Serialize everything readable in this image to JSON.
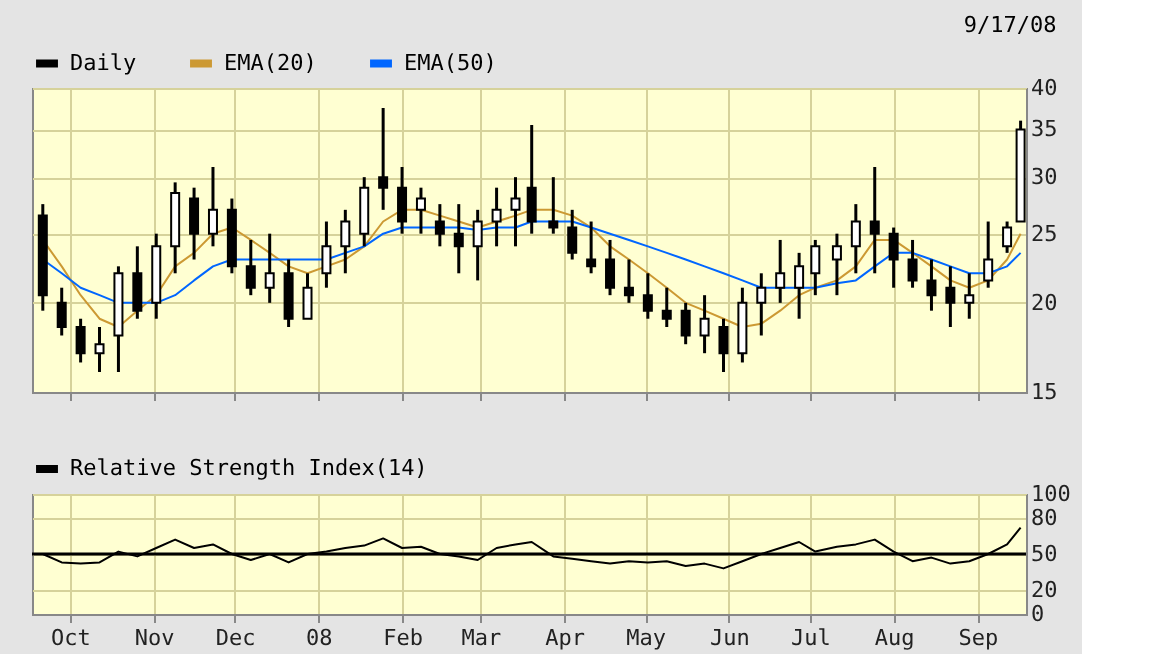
{
  "chart_data": [
    {
      "type": "candlestick",
      "annotations": [
        "9/17/08"
      ],
      "log": "y",
      "grid": true,
      "legend": "top left",
      "tick_labels": "y",
      "xlim": [
        "2007-09-17",
        "2008-09-19"
      ],
      "xticks": [
        {
          "value": "2007-10-01",
          "label": null
        },
        {
          "value": "2007-11-01",
          "label": null
        },
        {
          "value": "2007-12-01",
          "label": null
        },
        {
          "value": "2008-01-01",
          "label": null
        },
        {
          "value": "2008-02-01",
          "label": null
        },
        {
          "value": "2008-03-01",
          "label": null
        },
        {
          "value": "2008-04-01",
          "label": null
        },
        {
          "value": "2008-05-01",
          "label": null
        },
        {
          "value": "2008-06-01",
          "label": null
        },
        {
          "value": "2008-07-01",
          "label": null
        },
        {
          "value": "2008-08-01",
          "label": null
        },
        {
          "value": "2008-09-01",
          "label": null
        }
      ],
      "ylim": [
        15,
        40
      ],
      "yticks": [
        15,
        20,
        25,
        30,
        35,
        40
      ],
      "x": [
        "2007-09-21",
        "2007-09-28",
        "2007-10-05",
        "2007-10-12",
        "2007-10-19",
        "2007-10-26",
        "2007-11-02",
        "2007-11-09",
        "2007-11-16",
        "2007-11-23",
        "2007-11-30",
        "2007-12-07",
        "2007-12-14",
        "2007-12-21",
        "2007-12-28",
        "2008-01-04",
        "2008-01-11",
        "2008-01-18",
        "2008-01-25",
        "2008-02-01",
        "2008-02-08",
        "2008-02-15",
        "2008-02-22",
        "2008-02-29",
        "2008-03-07",
        "2008-03-14",
        "2008-03-20",
        "2008-03-28",
        "2008-04-04",
        "2008-04-11",
        "2008-04-18",
        "2008-04-25",
        "2008-05-02",
        "2008-05-09",
        "2008-05-16",
        "2008-05-23",
        "2008-05-30",
        "2008-06-06",
        "2008-06-13",
        "2008-06-20",
        "2008-06-27",
        "2008-07-03",
        "2008-07-11",
        "2008-07-18",
        "2008-07-25",
        "2008-08-01",
        "2008-08-08",
        "2008-08-15",
        "2008-08-22",
        "2008-08-29",
        "2008-09-05",
        "2008-09-12",
        "2008-09-17"
      ],
      "series": [
        {
          "name": "Daily",
          "type": "candlestick",
          "color": "#000000",
          "ohlc": [
            [
              26.5,
              27.5,
              19.5,
              20.5
            ],
            [
              20,
              21,
              18,
              18.5
            ],
            [
              18.5,
              19,
              16.5,
              17
            ],
            [
              17,
              18.5,
              16,
              17.5
            ],
            [
              18,
              22.5,
              16,
              22
            ],
            [
              22,
              24,
              19,
              19.5
            ],
            [
              20,
              25,
              19,
              24
            ],
            [
              24,
              29.5,
              22,
              28.5
            ],
            [
              28,
              29,
              23,
              25
            ],
            [
              25,
              31,
              24,
              27
            ],
            [
              27,
              28,
              22,
              22.5
            ],
            [
              22.5,
              24.5,
              20.5,
              21
            ],
            [
              21,
              25,
              20,
              22
            ],
            [
              22,
              23,
              18.5,
              19
            ],
            [
              19,
              22,
              19,
              21
            ],
            [
              22,
              26,
              21,
              24
            ],
            [
              24,
              27,
              22,
              26
            ],
            [
              25,
              30,
              24,
              29
            ],
            [
              30,
              37.5,
              27,
              29
            ],
            [
              29,
              31,
              25,
              26
            ],
            [
              27,
              29,
              25,
              28
            ],
            [
              26,
              27.5,
              24,
              25
            ],
            [
              25,
              27.5,
              22,
              24
            ],
            [
              24,
              27,
              21.5,
              26
            ],
            [
              26,
              29,
              24,
              27
            ],
            [
              27,
              30,
              24,
              28
            ],
            [
              29,
              35.5,
              25,
              26
            ],
            [
              26,
              30,
              25,
              25.5
            ],
            [
              25.5,
              27,
              23,
              23.5
            ],
            [
              23,
              26,
              22,
              22.5
            ],
            [
              23,
              24.5,
              20.5,
              21
            ],
            [
              21,
              23,
              20,
              20.5
            ],
            [
              20.5,
              22,
              19,
              19.5
            ],
            [
              19.5,
              21,
              18.5,
              19
            ],
            [
              19.5,
              20,
              17.5,
              18
            ],
            [
              18,
              20.5,
              17,
              19
            ],
            [
              18.5,
              19,
              16,
              17
            ],
            [
              17,
              21,
              16.5,
              20
            ],
            [
              20,
              22,
              18,
              21
            ],
            [
              21,
              24.5,
              20,
              22
            ],
            [
              21,
              23.5,
              19,
              22.5
            ],
            [
              22,
              24.5,
              20.5,
              24
            ],
            [
              23,
              25,
              20.5,
              24
            ],
            [
              24,
              27.5,
              22,
              26
            ],
            [
              26,
              31,
              22,
              25
            ],
            [
              25,
              25.5,
              21,
              23
            ],
            [
              23,
              24.5,
              21,
              21.5
            ],
            [
              21.5,
              23,
              19.5,
              20.5
            ],
            [
              21,
              22.5,
              18.5,
              20
            ],
            [
              20,
              22,
              19,
              20.5
            ],
            [
              21.5,
              26,
              21,
              23
            ],
            [
              24,
              26,
              23.5,
              25.5
            ],
            [
              26,
              36,
              26,
              35
            ]
          ]
        },
        {
          "name": "EMA(20)",
          "type": "line",
          "color": "#cc9933",
          "values": [
            24.5,
            22.5,
            20.5,
            19,
            18.5,
            19.5,
            20.5,
            22.5,
            23.5,
            25,
            25.5,
            24.5,
            23.5,
            22.5,
            22,
            22.5,
            23,
            24,
            26,
            27,
            27,
            26.5,
            26,
            25.5,
            26,
            26.5,
            27,
            27,
            26.5,
            25.5,
            24,
            23,
            22,
            21,
            20,
            19.5,
            19,
            18.5,
            18.7,
            19.5,
            20.5,
            21,
            21.5,
            22.5,
            24.5,
            24.5,
            23.5,
            22.5,
            21.5,
            21,
            21.5,
            23,
            25
          ]
        },
        {
          "name": "EMA(50)",
          "type": "line",
          "color": "#0066ff",
          "values": [
            23,
            22,
            21,
            20.5,
            20,
            20,
            20,
            20.5,
            21.5,
            22.5,
            23,
            23,
            23,
            23,
            23,
            23,
            23.5,
            24,
            25,
            25.5,
            25.5,
            25.5,
            25.5,
            25.3,
            25.5,
            25.5,
            26,
            26,
            26,
            25.5,
            25,
            24.5,
            24,
            23.5,
            23,
            22.5,
            22,
            21.5,
            21,
            21,
            21,
            21,
            21.3,
            21.5,
            22.5,
            23.5,
            23.5,
            23,
            22.5,
            22,
            22,
            22.5,
            23.5
          ]
        }
      ]
    },
    {
      "type": "line",
      "grid": true,
      "legend": "top left",
      "xlim": [
        "2007-09-17",
        "2008-09-19"
      ],
      "xticks": [
        {
          "value": "2007-10-01",
          "label": "Oct"
        },
        {
          "value": "2007-11-01",
          "label": "Nov"
        },
        {
          "value": "2007-12-01",
          "label": "Dec"
        },
        {
          "value": "2008-01-01",
          "label": "08"
        },
        {
          "value": "2008-02-01",
          "label": "Feb"
        },
        {
          "value": "2008-03-01",
          "label": "Mar"
        },
        {
          "value": "2008-04-01",
          "label": "Apr"
        },
        {
          "value": "2008-05-01",
          "label": "May"
        },
        {
          "value": "2008-06-01",
          "label": "Jun"
        },
        {
          "value": "2008-07-01",
          "label": "Jul"
        },
        {
          "value": "2008-08-01",
          "label": "Aug"
        },
        {
          "value": "2008-09-01",
          "label": "Sep"
        }
      ],
      "ylim": [
        0,
        100
      ],
      "yticks": [
        0,
        20,
        50,
        80,
        100
      ],
      "ref_lines": [
        {
          "axis": "y",
          "value": 50,
          "color": "#000000"
        }
      ],
      "x": [
        "2007-09-21",
        "2007-09-28",
        "2007-10-05",
        "2007-10-12",
        "2007-10-19",
        "2007-10-26",
        "2007-11-02",
        "2007-11-09",
        "2007-11-16",
        "2007-11-23",
        "2007-11-30",
        "2007-12-07",
        "2007-12-14",
        "2007-12-21",
        "2007-12-28",
        "2008-01-04",
        "2008-01-11",
        "2008-01-18",
        "2008-01-25",
        "2008-02-01",
        "2008-02-08",
        "2008-02-15",
        "2008-02-22",
        "2008-02-29",
        "2008-03-07",
        "2008-03-14",
        "2008-03-20",
        "2008-03-28",
        "2008-04-04",
        "2008-04-11",
        "2008-04-18",
        "2008-04-25",
        "2008-05-02",
        "2008-05-09",
        "2008-05-16",
        "2008-05-23",
        "2008-05-30",
        "2008-06-06",
        "2008-06-13",
        "2008-06-20",
        "2008-06-27",
        "2008-07-03",
        "2008-07-11",
        "2008-07-18",
        "2008-07-25",
        "2008-08-01",
        "2008-08-08",
        "2008-08-15",
        "2008-08-22",
        "2008-08-29",
        "2008-09-05",
        "2008-09-12",
        "2008-09-17"
      ],
      "series": [
        {
          "name": "Relative Strength Index(14)",
          "color": "#000000",
          "values": [
            50,
            43,
            42,
            43,
            52,
            48,
            55,
            62,
            55,
            58,
            50,
            45,
            50,
            43,
            50,
            52,
            55,
            57,
            63,
            55,
            56,
            50,
            48,
            45,
            55,
            58,
            60,
            48,
            46,
            44,
            42,
            44,
            43,
            44,
            40,
            42,
            38,
            44,
            50,
            55,
            60,
            52,
            56,
            58,
            62,
            52,
            44,
            47,
            42,
            44,
            50,
            58,
            72
          ]
        }
      ]
    }
  ]
}
